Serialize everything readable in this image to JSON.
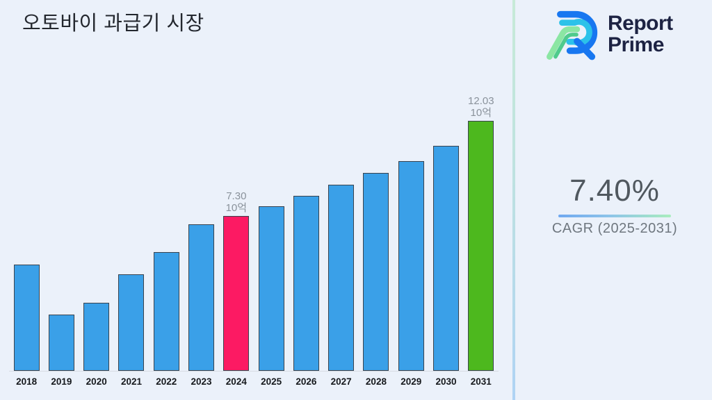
{
  "page": {
    "background": "#EBF1FA"
  },
  "header": {
    "title": "오토바이 과급기 시장"
  },
  "brand": {
    "logo_icon": "report-prime-logo",
    "name_line1": "Report",
    "name_line2": "Prime",
    "text_color": "#1D2343"
  },
  "stats": {
    "cagr_value": "7.40%",
    "cagr_label": "CAGR (2025-2031)"
  },
  "chart_data": {
    "type": "bar",
    "title": "오토바이 과급기 시장",
    "unit": "10억",
    "categories": [
      "2018",
      "2019",
      "2020",
      "2021",
      "2022",
      "2023",
      "2024",
      "2025",
      "2026",
      "2027",
      "2028",
      "2029",
      "2030",
      "2031"
    ],
    "values": [
      4.9,
      2.4,
      3.0,
      4.4,
      5.5,
      6.9,
      7.3,
      7.8,
      8.3,
      8.85,
      9.45,
      10.05,
      10.8,
      12.03
    ],
    "labels": {
      "2024": [
        "7.30",
        "10억"
      ],
      "2031": [
        "12.03",
        "10억"
      ]
    },
    "highlight_year": "2024",
    "forecast_year": "2031",
    "colors": {
      "default": "#3AA0E8",
      "highlight": "#FC1A63",
      "forecast": "#4DB81E",
      "bar_border": "#39424D",
      "data_label": "#8A929B"
    },
    "xlabel": "",
    "ylabel": "",
    "ylim": [
      0,
      13.2
    ],
    "grid": false,
    "legend": null
  }
}
